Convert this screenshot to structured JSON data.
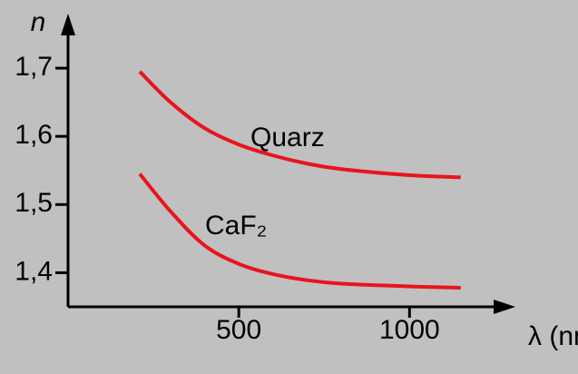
{
  "chart_data": {
    "type": "line",
    "x_label": "λ (nm)",
    "y_label": "n",
    "x": [
      210,
      300,
      400,
      500,
      600,
      700,
      800,
      1000,
      1150
    ],
    "series": [
      {
        "name": "Quarz",
        "color": "#e8141e",
        "values": [
          1.695,
          1.65,
          1.612,
          1.588,
          1.572,
          1.56,
          1.552,
          1.543,
          1.54
        ]
      },
      {
        "name": "CaF₂",
        "color": "#e8141e",
        "values": [
          1.545,
          1.49,
          1.44,
          1.413,
          1.398,
          1.389,
          1.384,
          1.38,
          1.378
        ]
      }
    ],
    "xlim": [
      0,
      1310
    ],
    "ylim": [
      1.35,
      1.78
    ],
    "xticks": [
      500,
      1000
    ],
    "yticks": [
      {
        "value": 1.4,
        "label": "1,4"
      },
      {
        "value": 1.5,
        "label": "1,5"
      },
      {
        "value": 1.6,
        "label": "1,6"
      },
      {
        "value": 1.7,
        "label": "1,7"
      }
    ]
  }
}
